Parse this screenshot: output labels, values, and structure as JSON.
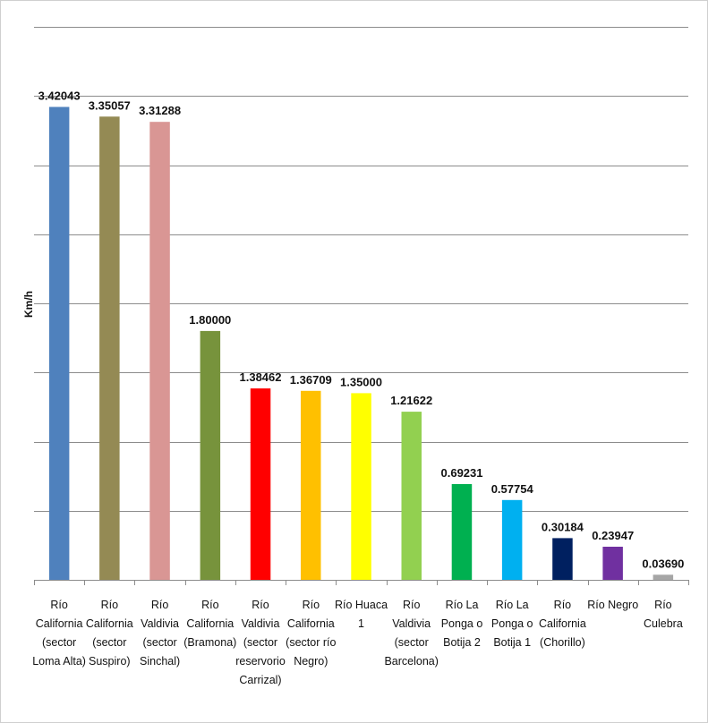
{
  "chart_data": {
    "type": "bar",
    "title": "",
    "xlabel": "",
    "ylabel": "Km/h",
    "ylim": [
      0,
      4
    ],
    "grid": true,
    "legend": "none",
    "categories": [
      [
        "Río",
        "California",
        "(sector",
        "Loma Alta)"
      ],
      [
        "Río",
        "California",
        "(sector",
        "Suspiro)"
      ],
      [
        "Río",
        "Valdivia",
        "(sector",
        "Sinchal)"
      ],
      [
        "Río",
        "California",
        "(Bramona)"
      ],
      [
        "Río",
        "Valdivia",
        "(sector",
        "reservorio",
        "Carrizal)"
      ],
      [
        "Río",
        "California",
        "(sector río",
        "Negro)"
      ],
      [
        "Río Huaca",
        "1"
      ],
      [
        "Río",
        "Valdivia",
        "(sector",
        "Barcelona)"
      ],
      [
        "Río La",
        "Ponga o",
        "Botija 2"
      ],
      [
        "Río La",
        "Ponga o",
        "Botija 1"
      ],
      [
        "Río",
        "California",
        "(Chorillo)"
      ],
      [
        "Río Negro"
      ],
      [
        "Río",
        "Culebra"
      ]
    ],
    "values": [
      3.42043,
      3.35057,
      3.31288,
      1.8,
      1.38462,
      1.36709,
      1.35,
      1.21622,
      0.69231,
      0.57754,
      0.30184,
      0.23947,
      0.0369
    ],
    "value_labels": [
      "3.42043",
      "3.35057",
      "3.31288",
      "1.80000",
      "1.38462",
      "1.36709",
      "1.35000",
      "1.21622",
      "0.69231",
      "0.57754",
      "0.30184",
      "0.23947",
      "0.03690"
    ],
    "colors": [
      "#4f81bd",
      "#948a54",
      "#d99694",
      "#77933c",
      "#ff0000",
      "#ffc000",
      "#ffff00",
      "#92d050",
      "#00b050",
      "#00b0f0",
      "#002060",
      "#7030a0",
      "#a6a6a6"
    ]
  }
}
